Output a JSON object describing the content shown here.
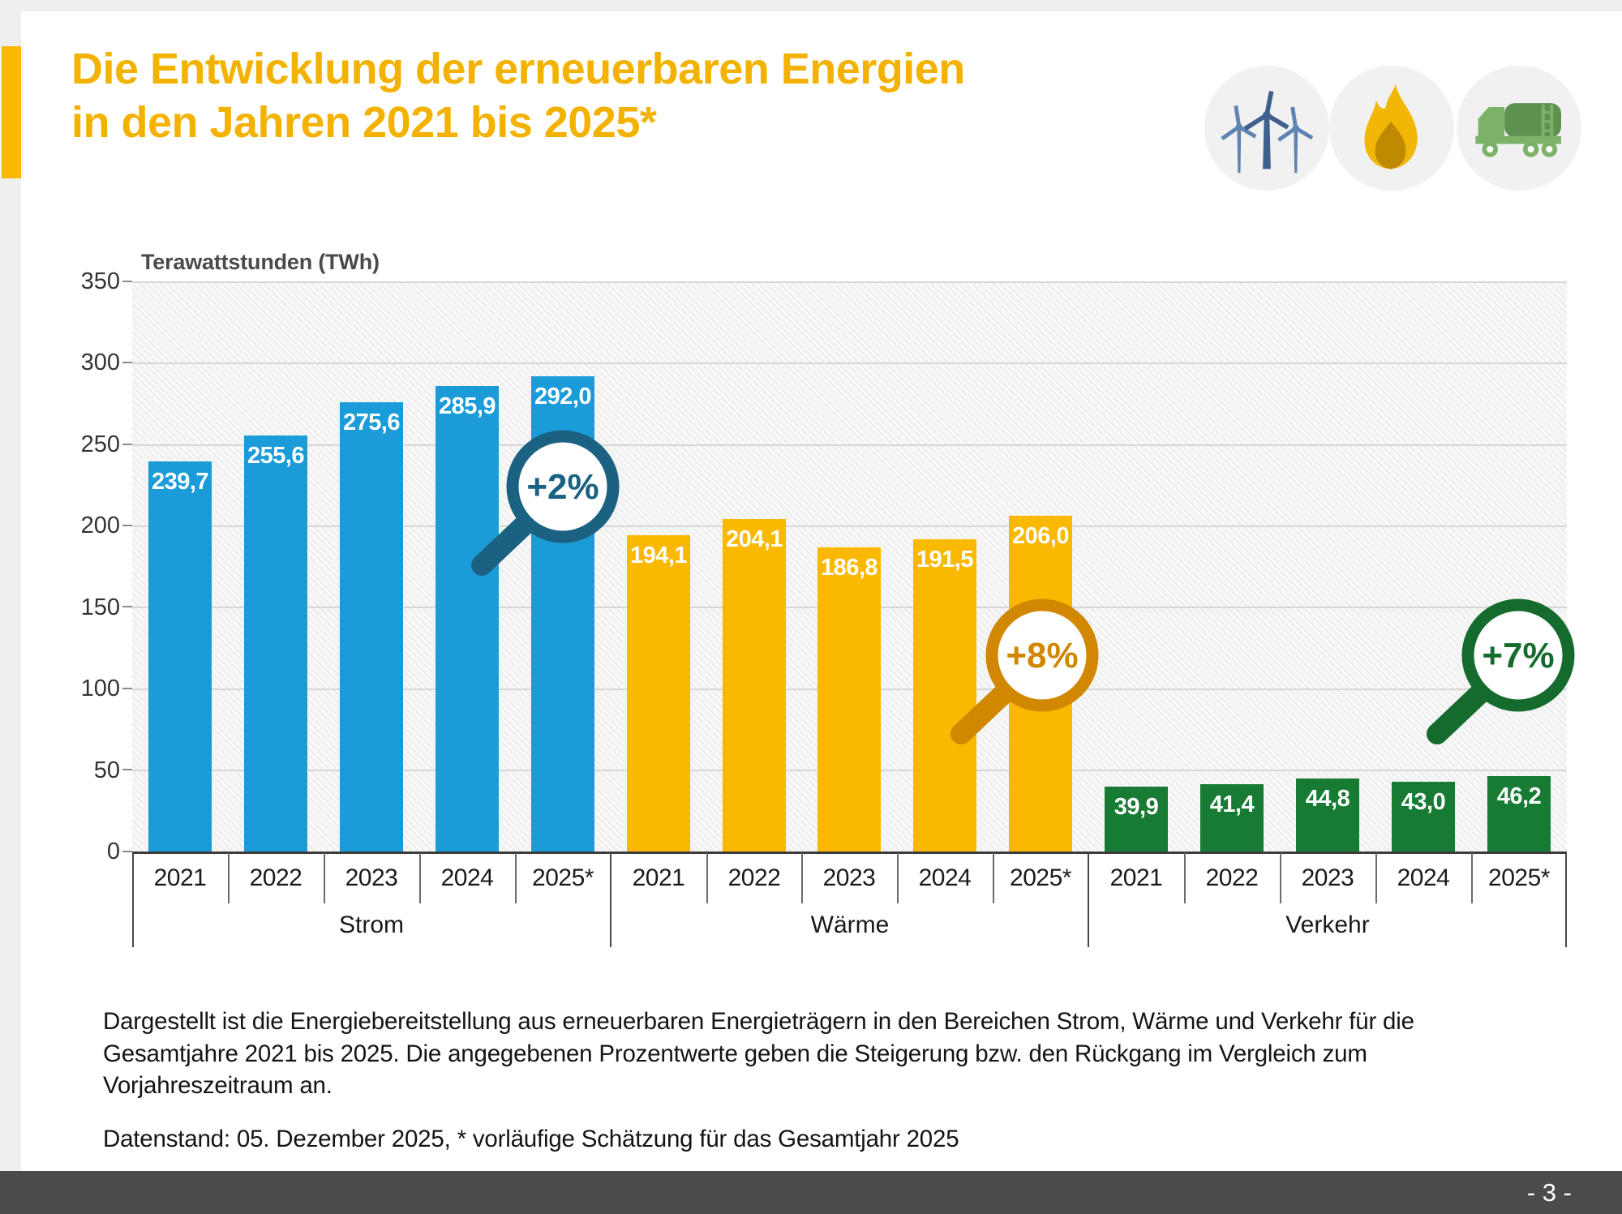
{
  "page": {
    "page_number": "- 3 -",
    "accent_color": "#fbb800",
    "footer_bar_color": "#4b4b4b"
  },
  "title": {
    "color": "#f3b200",
    "line1": "Die Entwicklung der erneuerbaren Energien",
    "line2": "in den Jahren 2021 bis 2025*"
  },
  "header_icons": [
    "wind-turbines",
    "flame",
    "tanker-truck"
  ],
  "chart_data": {
    "type": "bar",
    "title": "Die Entwicklung der erneuerbaren Energien in den Jahren 2021 bis 2025*",
    "ylabel": "Terawattstunden (TWh)",
    "unit_label": "Terawattstunden (TWh)",
    "ylim": [
      0,
      350
    ],
    "ytick_step": 50,
    "ytick_labels": [
      "350",
      "300",
      "250",
      "200",
      "150",
      "100",
      "50",
      "0"
    ],
    "grid": true,
    "categories": [
      "2021",
      "2022",
      "2023",
      "2024",
      "2025*"
    ],
    "groups": [
      {
        "label": "Strom",
        "color": "#1b9cd9",
        "values": [
          239.7,
          255.6,
          275.6,
          285.9,
          292.0
        ],
        "value_labels": [
          "239,7",
          "255,6",
          "275,6",
          "285,9",
          "292,0"
        ],
        "badge": {
          "text": "+2%",
          "color": "#1a6182"
        }
      },
      {
        "label": "Wärme",
        "color": "#fbb800",
        "values": [
          194.1,
          204.1,
          186.8,
          191.5,
          206.0
        ],
        "value_labels": [
          "194,1",
          "204,1",
          "186,8",
          "191,5",
          "206,0"
        ],
        "badge": {
          "text": "+8%",
          "color": "#d18700"
        }
      },
      {
        "label": "Verkehr",
        "color": "#177b33",
        "values": [
          39.9,
          41.4,
          44.8,
          43.0,
          46.2
        ],
        "value_labels": [
          "39,9",
          "41,4",
          "44,8",
          "43,0",
          "46,2"
        ],
        "badge": {
          "text": "+7%",
          "color": "#156b2d"
        }
      }
    ]
  },
  "footnote": {
    "line1": "Dargestellt ist die Energiebereitstellung aus erneuerbaren Energieträgern in den Bereichen Strom, Wärme und Verkehr für die",
    "line2": "Gesamtjahre 2021 bis 2025. Die angegebenen Prozentwerte geben die Steigerung bzw. den Rückgang im Vergleich zum",
    "line3": "Vorjahreszeitraum an."
  },
  "datenstand": "Datenstand: 05. Dezember 2025, * vorläufige Schätzung für das Gesamtjahr 2025"
}
